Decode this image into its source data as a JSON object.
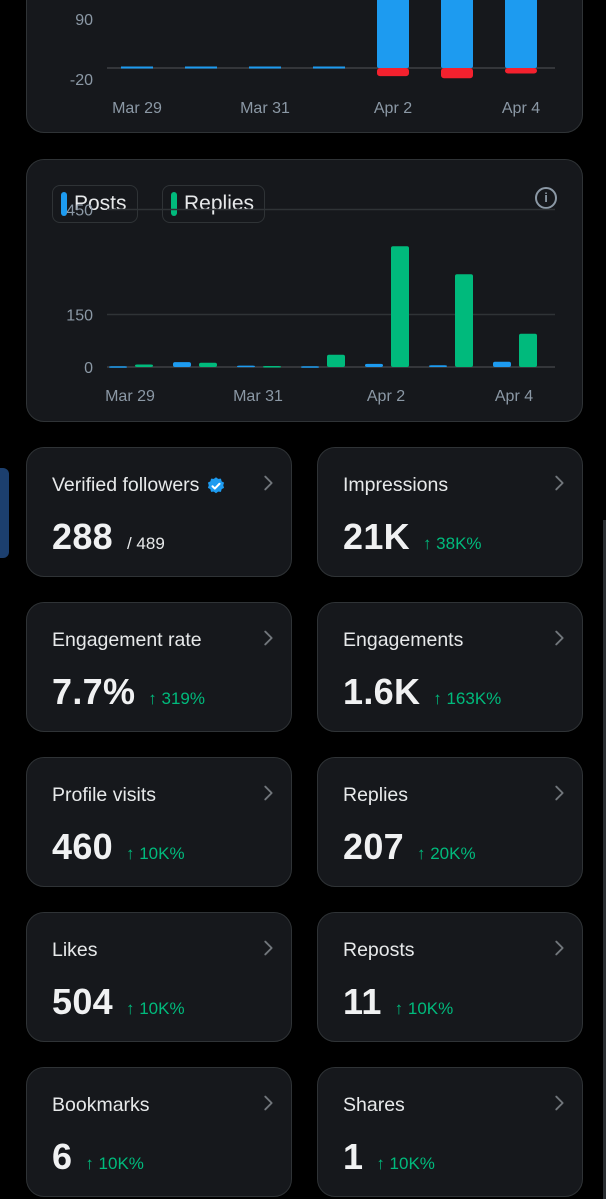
{
  "chart_data": [
    {
      "type": "bar",
      "categories": [
        "Mar 29",
        "Mar 30",
        "Mar 31",
        "Apr 1",
        "Apr 2",
        "Apr 3",
        "Apr 4"
      ],
      "series": [
        {
          "values": [
            0,
            0,
            0,
            0,
            320,
            320,
            110
          ],
          "color": "#1d9bf0"
        },
        {
          "values": [
            0,
            0,
            0,
            0,
            -12,
            -15,
            -8
          ],
          "color": "#f4212e"
        }
      ],
      "ytick_labels": [
        "90",
        "-20"
      ],
      "xtick_labels": [
        "Mar 29",
        "Mar 31",
        "Apr 2",
        "Apr 4"
      ]
    },
    {
      "type": "bar",
      "categories": [
        "Mar 29",
        "Mar 30",
        "Mar 31",
        "Apr 1",
        "Apr 2",
        "Apr 3",
        "Apr 4"
      ],
      "series": [
        {
          "name": "Posts",
          "values": [
            2,
            14,
            4,
            2,
            9,
            5,
            15
          ],
          "color": "#1d9bf0"
        },
        {
          "name": "Replies",
          "values": [
            7,
            12,
            3,
            35,
            345,
            265,
            95
          ],
          "color": "#00ba7c"
        }
      ],
      "ylim": [
        0,
        450
      ],
      "ytick_labels": [
        "450",
        "150",
        "0"
      ],
      "xtick_labels": [
        "Mar 29",
        "Mar 31",
        "Apr 2",
        "Apr 4"
      ],
      "grid": true
    }
  ],
  "legend": {
    "posts_label": "Posts",
    "replies_label": "Replies"
  },
  "metrics": [
    {
      "label": "Verified followers",
      "value": "288",
      "denominator": "/ 489",
      "verified": true
    },
    {
      "label": "Impressions",
      "value": "21K",
      "delta": "↑ 38K%"
    },
    {
      "label": "Engagement rate",
      "value": "7.7%",
      "delta": "↑ 319%"
    },
    {
      "label": "Engagements",
      "value": "1.6K",
      "delta": "↑ 163K%"
    },
    {
      "label": "Profile visits",
      "value": "460",
      "delta": "↑ 10K%"
    },
    {
      "label": "Replies",
      "value": "207",
      "delta": "↑ 20K%"
    },
    {
      "label": "Likes",
      "value": "504",
      "delta": "↑ 10K%"
    },
    {
      "label": "Reposts",
      "value": "11",
      "delta": "↑ 10K%"
    },
    {
      "label": "Bookmarks",
      "value": "6",
      "delta": "↑ 10K%"
    },
    {
      "label": "Shares",
      "value": "1",
      "delta": "↑ 10K%"
    }
  ],
  "colors": {
    "positive": "#00ba7c",
    "posts": "#1d9bf0",
    "replies": "#00ba7c",
    "negative": "#f4212e",
    "verified": "#1d9bf0"
  }
}
